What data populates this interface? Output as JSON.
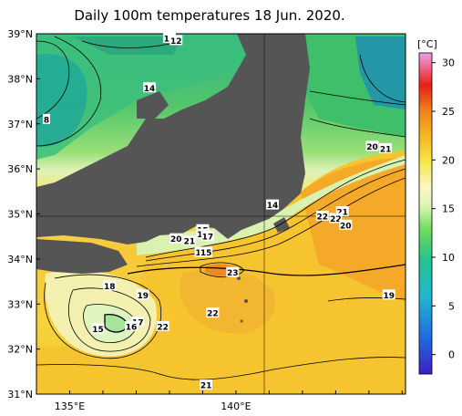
{
  "title": "Daily 100m temperatures 18 Jun. 2020.",
  "colorbar": {
    "unit": "[°C]",
    "ticks": [
      30,
      25,
      20,
      15,
      10,
      5,
      0
    ],
    "range": [
      -2,
      31
    ]
  },
  "axes": {
    "lat_labels": [
      "39°N",
      "38°N",
      "37°N",
      "36°N",
      "35°N",
      "34°N",
      "33°N",
      "32°N",
      "31°N"
    ],
    "lon_labels": [
      "135°E",
      "140°E"
    ]
  },
  "contour_labels": [
    {
      "text": "13",
      "lon": 138.0,
      "lat": 38.9
    },
    {
      "text": "12",
      "lon": 138.2,
      "lat": 38.85
    },
    {
      "text": "14",
      "lon": 137.4,
      "lat": 37.8
    },
    {
      "text": "8",
      "lon": 134.3,
      "lat": 37.1
    },
    {
      "text": "20",
      "lon": 144.1,
      "lat": 36.5
    },
    {
      "text": "21",
      "lon": 144.5,
      "lat": 36.45
    },
    {
      "text": "14",
      "lon": 141.1,
      "lat": 35.2
    },
    {
      "text": "22",
      "lon": 142.6,
      "lat": 34.95
    },
    {
      "text": "21",
      "lon": 143.2,
      "lat": 35.05
    },
    {
      "text": "22",
      "lon": 143.0,
      "lat": 34.9
    },
    {
      "text": "20",
      "lon": 143.3,
      "lat": 34.75
    },
    {
      "text": "15",
      "lon": 139.0,
      "lat": 34.65
    },
    {
      "text": "16",
      "lon": 139.0,
      "lat": 34.55
    },
    {
      "text": "17",
      "lon": 139.15,
      "lat": 34.5
    },
    {
      "text": "20",
      "lon": 138.2,
      "lat": 34.45
    },
    {
      "text": "21",
      "lon": 138.6,
      "lat": 34.4
    },
    {
      "text": "19",
      "lon": 138.95,
      "lat": 34.15
    },
    {
      "text": "15",
      "lon": 139.1,
      "lat": 34.15
    },
    {
      "text": "23",
      "lon": 139.9,
      "lat": 33.7
    },
    {
      "text": "18",
      "lon": 136.2,
      "lat": 33.4
    },
    {
      "text": "19",
      "lon": 137.2,
      "lat": 33.2
    },
    {
      "text": "19",
      "lon": 144.6,
      "lat": 33.2
    },
    {
      "text": "22",
      "lon": 139.3,
      "lat": 32.8
    },
    {
      "text": "17",
      "lon": 137.05,
      "lat": 32.6
    },
    {
      "text": "16",
      "lon": 136.85,
      "lat": 32.5
    },
    {
      "text": "15",
      "lon": 135.85,
      "lat": 32.45
    },
    {
      "text": "22",
      "lon": 137.8,
      "lat": 32.5
    },
    {
      "text": "21",
      "lon": 139.1,
      "lat": 31.2
    }
  ]
}
